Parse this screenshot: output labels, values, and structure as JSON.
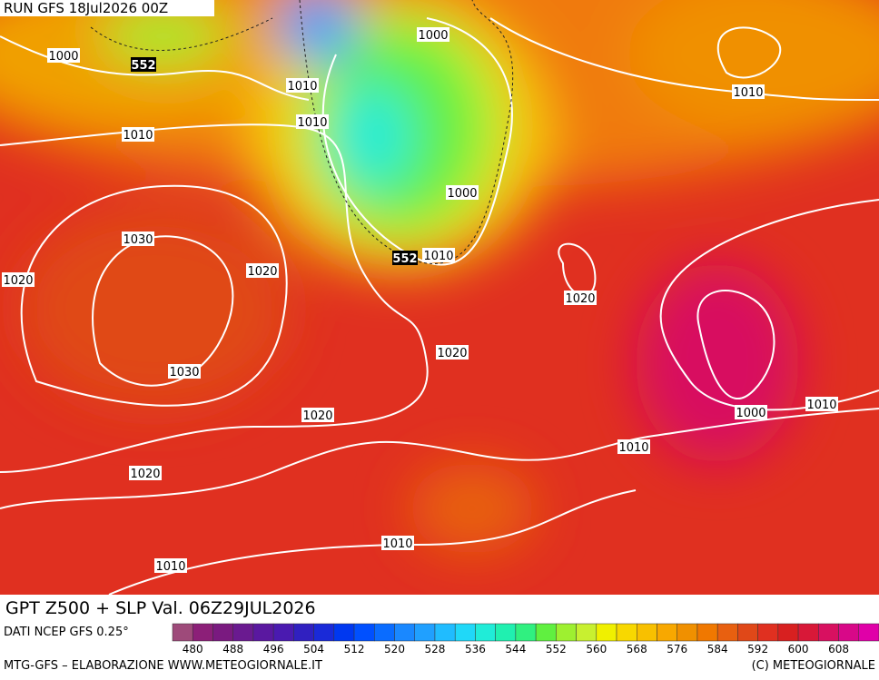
{
  "header": {
    "run": "RUN GFS 18Jul2026 00Z"
  },
  "title": "GPT Z500 + SLP Val. 06Z29JUL2026",
  "source": "DATI NCEP GFS 0.25°",
  "legend": {
    "ticks": [
      480,
      488,
      496,
      504,
      512,
      520,
      528,
      536,
      544,
      552,
      560,
      568,
      576,
      584,
      592,
      600,
      608
    ],
    "colors": [
      "#9e4a7a",
      "#8c1f78",
      "#7a1a80",
      "#6a1a90",
      "#5a18a0",
      "#4a1ab0",
      "#3020c0",
      "#1a2ad8",
      "#0038f0",
      "#0050ff",
      "#0a6cff",
      "#1a88ff",
      "#20a0ff",
      "#20bcff",
      "#20d8f8",
      "#20ecd8",
      "#20f0b0",
      "#30f080",
      "#60f040",
      "#9ef030",
      "#c8f030",
      "#f0f000",
      "#f8d800",
      "#f8c000",
      "#f8a800",
      "#f09000",
      "#f07800",
      "#e86010",
      "#e04818",
      "#e03020",
      "#d82020",
      "#d81838",
      "#d81060",
      "#d80888",
      "#e000a8"
    ]
  },
  "map": {
    "labels": [
      "1000",
      "552",
      "1010",
      "1000",
      "1010",
      "1010",
      "1010",
      "1000",
      "1030",
      "1020",
      "552",
      "1010",
      "1020",
      "1020",
      "1020",
      "1030",
      "1010",
      "1000",
      "1020",
      "1010",
      "1020",
      "1010",
      "1010"
    ]
  },
  "footer": {
    "left": "MTG-GFS – ELABORAZIONE WWW.METEOGIORNALE.IT",
    "right": "(C) METEOGIORNALE"
  }
}
